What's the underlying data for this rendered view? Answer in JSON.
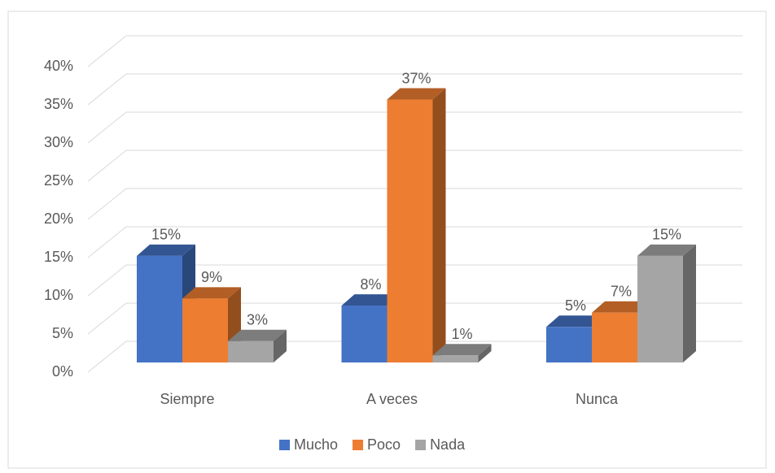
{
  "chart_data": {
    "type": "bar3d",
    "categories": [
      "Siempre",
      "A veces",
      "Nunca"
    ],
    "series": [
      {
        "name": "Mucho",
        "color": "#4472c4",
        "values": [
          15,
          8,
          5
        ],
        "value_labels": [
          "15%",
          "8%",
          "5%"
        ]
      },
      {
        "name": "Poco",
        "color": "#ed7d31",
        "values": [
          9,
          37,
          7
        ],
        "value_labels": [
          "9%",
          "37%",
          "7%"
        ]
      },
      {
        "name": "Nada",
        "color": "#a5a5a5",
        "values": [
          3,
          1,
          15
        ],
        "value_labels": [
          "3%",
          "1%",
          "15%"
        ]
      }
    ],
    "ylim": [
      0,
      40
    ],
    "yticks": [
      {
        "value": 0,
        "label": "0%"
      },
      {
        "value": 5,
        "label": "5%"
      },
      {
        "value": 10,
        "label": "10%"
      },
      {
        "value": 15,
        "label": "15%"
      },
      {
        "value": 20,
        "label": "20%"
      },
      {
        "value": 25,
        "label": "25%"
      },
      {
        "value": 30,
        "label": "30%"
      },
      {
        "value": 35,
        "label": "35%"
      },
      {
        "value": 40,
        "label": "40%"
      }
    ],
    "grid": true,
    "legend": "bottom"
  }
}
